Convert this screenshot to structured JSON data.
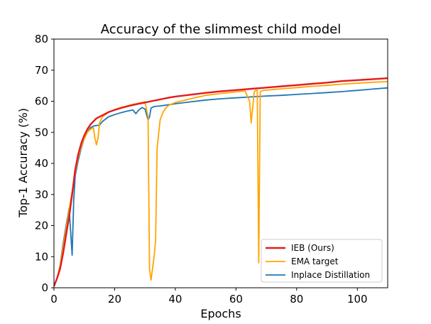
{
  "chart_data": {
    "type": "line",
    "title": "Accuracy of the slimmest child model",
    "xlabel": "Epochs",
    "ylabel": "Top-1 Accuracy (%)",
    "xlim": [
      0,
      110
    ],
    "ylim": [
      0,
      80
    ],
    "xticks": [
      0,
      20,
      40,
      60,
      80,
      100
    ],
    "yticks": [
      0,
      10,
      20,
      30,
      40,
      50,
      60,
      70,
      80
    ],
    "grid": false,
    "legend_position": "lower-right",
    "series": [
      {
        "name": "IEB (Ours)",
        "color": "#e41a1c",
        "x": [
          0,
          1,
          2,
          3,
          4,
          5,
          6,
          7,
          8,
          9,
          10,
          11,
          12,
          13,
          14,
          15,
          16,
          18,
          20,
          22,
          24,
          26,
          28,
          30,
          32,
          34,
          36,
          38,
          40,
          45,
          50,
          55,
          60,
          65,
          70,
          75,
          80,
          85,
          90,
          95,
          100,
          105,
          110
        ],
        "y": [
          0.5,
          3,
          6,
          11,
          17,
          23,
          30,
          38,
          43,
          46.5,
          49,
          51,
          52.5,
          53.5,
          54.5,
          55,
          55.5,
          56.5,
          57.2,
          57.8,
          58.3,
          58.8,
          59.2,
          59.6,
          60,
          60.4,
          60.8,
          61.2,
          61.5,
          62.1,
          62.7,
          63.2,
          63.6,
          64,
          64.4,
          64.8,
          65.2,
          65.6,
          66,
          66.5,
          66.8,
          67.1,
          67.4
        ]
      },
      {
        "name": "EMA target",
        "color": "#ffa500",
        "x": [
          0,
          1,
          2,
          3,
          4,
          5,
          6,
          7,
          8,
          9,
          10,
          11,
          12,
          13,
          13.5,
          14,
          14.5,
          15,
          16,
          18,
          20,
          22,
          24,
          26,
          28,
          30,
          31,
          31.5,
          32,
          33,
          33.5,
          34,
          35,
          36,
          37,
          38,
          40,
          45,
          50,
          55,
          60,
          63,
          64.5,
          65,
          65.5,
          66,
          66.5,
          67,
          67.5,
          68,
          68.5,
          69,
          70,
          75,
          80,
          85,
          90,
          95,
          100,
          105,
          110
        ],
        "y": [
          0.5,
          3,
          7,
          13,
          19,
          25,
          31,
          37,
          42,
          45.5,
          48,
          50,
          51,
          51.5,
          48,
          46,
          48,
          53,
          55,
          56.5,
          57.3,
          58,
          58.5,
          59,
          59.4,
          59.8,
          55,
          6,
          2.5,
          10,
          15,
          45,
          54,
          56.5,
          58,
          58.8,
          59.6,
          60.8,
          61.9,
          62.5,
          63,
          63.3,
          60,
          53,
          58,
          63,
          63.5,
          63.5,
          8,
          63,
          63.3,
          63.5,
          63.6,
          64,
          64.4,
          64.8,
          65.1,
          65.5,
          65.8,
          66.1,
          66.3
        ]
      },
      {
        "name": "Inplace Distillation",
        "color": "#1f77b4",
        "x": [
          0,
          1,
          2,
          3,
          4,
          5,
          5.5,
          6,
          6.5,
          7,
          8,
          9,
          10,
          11,
          12,
          13,
          14,
          15,
          16,
          18,
          20,
          22,
          24,
          26,
          27,
          28,
          29,
          30,
          31,
          31.5,
          32,
          33,
          35,
          38,
          40,
          45,
          50,
          55,
          60,
          65,
          70,
          75,
          80,
          85,
          90,
          95,
          100,
          105,
          110
        ],
        "y": [
          0.5,
          3,
          7,
          14,
          20,
          25.5,
          18,
          10.5,
          28,
          36,
          41,
          45,
          48,
          50,
          51.5,
          52,
          52.2,
          52.3,
          53.5,
          55,
          55.7,
          56.3,
          56.8,
          57.2,
          56,
          57.2,
          58,
          57.5,
          54,
          55,
          57.8,
          58.3,
          58.5,
          58.9,
          59.2,
          59.8,
          60.4,
          60.8,
          61.1,
          61.4,
          61.7,
          61.9,
          62.2,
          62.5,
          62.8,
          63.1,
          63.5,
          63.9,
          64.3
        ]
      }
    ]
  }
}
